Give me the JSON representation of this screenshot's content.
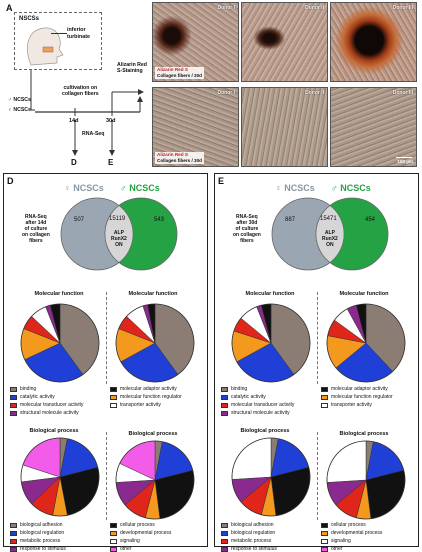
{
  "panels": {
    "A": "A",
    "B": "B",
    "C": "C",
    "D": "D",
    "E": "E"
  },
  "panel_a": {
    "nscs_box": "NSCSs",
    "inferior_turbinate": "inferior\nturbinate",
    "male_nscs": "NCSCs",
    "female_nscs": "NCSCs",
    "cultivation": "cultivation on\ncollagen fibers",
    "day14": "14d",
    "day30": "30d",
    "rnaseq": "RNA-Seq",
    "alizarin": "Alizarin Red\nS-Staining",
    "arrow_d": "D",
    "arrow_e": "E"
  },
  "panel_b": {
    "donors": [
      "Donor I",
      "Donor II",
      "Donor III"
    ],
    "cap_red": "Alizarin Red S",
    "cap_black": "Collagen fibers / 30d"
  },
  "panel_c": {
    "donors": [
      "Donor I",
      "Donor II",
      "Donor III"
    ],
    "cap_red": "Alizarin Red S",
    "cap_black": "Collagen fibers / 30d",
    "scale": "100 µm"
  },
  "panel_d": {
    "female": "NCSCs",
    "male": "NCSCs",
    "venn_left": "507",
    "venn_mid": "15119",
    "venn_right": "543",
    "venn_center_text": "ALP\nRunX2\nON",
    "side_text": "RNA-Seq\nafter 14d\nof culture\non collagen\nfibers",
    "mf_title_l": "Molecular function",
    "mf_title_r": "Molecular function",
    "bp_title_l": "Biological process",
    "bp_title_r": "Biological process"
  },
  "panel_e": {
    "female": "NCSCs",
    "male": "NCSCs",
    "venn_left": "887",
    "venn_mid": "15471",
    "venn_right": "454",
    "venn_center_text": "ALP\nRunX2\nON",
    "side_text": "RNA-Seq\nafter 30d\nof culture\non collagen\nfibers",
    "mf_title_l": "Molecular function",
    "mf_title_r": "Molecular function",
    "bp_title_l": "Biological process",
    "bp_title_r": "Biological process"
  },
  "legend_mf": [
    {
      "label": "binding",
      "color": "#8b7d74"
    },
    {
      "label": "molecular adaptor activity",
      "color": "#111111"
    },
    {
      "label": "catalytic activity",
      "color": "#1f3fd6"
    },
    {
      "label": "molecular function regulator",
      "color": "#f39a1e"
    },
    {
      "label": "molecular transducer activity",
      "color": "#e0261b"
    },
    {
      "label": "transporter activity",
      "color": "#ffffff"
    },
    {
      "label": "structural molecule activity",
      "color": "#8a2a8e"
    }
  ],
  "legend_bp": [
    {
      "label": "biological adhesion",
      "color": "#8b7d74"
    },
    {
      "label": "cellular process",
      "color": "#111111"
    },
    {
      "label": "biological regulation",
      "color": "#1f3fd6"
    },
    {
      "label": "developmental process",
      "color": "#f39a1e"
    },
    {
      "label": "metabolic process",
      "color": "#e0261b"
    },
    {
      "label": "signaling",
      "color": "#ffffff"
    },
    {
      "label": "response to stimulus",
      "color": "#8a2a8e"
    },
    {
      "label": "other",
      "color": "#f25ce8"
    }
  ],
  "colors": {
    "female_gray": "#9aa7b3",
    "male_green": "#25a244",
    "stain_red": "#b8261b"
  },
  "chart_data": [
    {
      "type": "pie",
      "panel": "D",
      "group": "Molecular function",
      "sex": "female",
      "labels": [
        "binding",
        "catalytic activity",
        "molecular function regulator",
        "molecular transducer activity",
        "transporter activity",
        "structural molecule activity",
        "molecular adaptor activity"
      ],
      "values": [
        40,
        28,
        13,
        6,
        7,
        2,
        4
      ]
    },
    {
      "type": "pie",
      "panel": "D",
      "group": "Molecular function",
      "sex": "male",
      "labels": [
        "binding",
        "catalytic activity",
        "molecular function regulator",
        "molecular transducer activity",
        "transporter activity",
        "structural molecule activity",
        "molecular adaptor activity"
      ],
      "values": [
        40,
        27,
        14,
        6,
        8,
        2,
        3
      ]
    },
    {
      "type": "pie",
      "panel": "D",
      "group": "Biological process",
      "sex": "female",
      "labels": [
        "biological adhesion",
        "biological regulation",
        "cellular process",
        "developmental process",
        "metabolic process",
        "response to stimulus",
        "signaling",
        "other"
      ],
      "values": [
        3,
        18,
        26,
        6,
        10,
        10,
        7,
        20
      ]
    },
    {
      "type": "pie",
      "panel": "D",
      "group": "Biological process",
      "sex": "male",
      "labels": [
        "biological adhesion",
        "biological regulation",
        "cellular process",
        "developmental process",
        "metabolic process",
        "response to stimulus",
        "signaling",
        "other"
      ],
      "values": [
        3,
        18,
        27,
        6,
        10,
        10,
        8,
        18
      ]
    },
    {
      "type": "pie",
      "panel": "E",
      "group": "Molecular function",
      "sex": "female",
      "labels": [
        "binding",
        "catalytic activity",
        "molecular function regulator",
        "molecular transducer activity",
        "transporter activity",
        "structural molecule activity",
        "molecular adaptor activity"
      ],
      "values": [
        40,
        27,
        13,
        6,
        8,
        2,
        4
      ]
    },
    {
      "type": "pie",
      "panel": "E",
      "group": "Molecular function",
      "sex": "male",
      "labels": [
        "binding",
        "catalytic activity",
        "molecular function regulator",
        "molecular transducer activity",
        "transporter activity",
        "structural molecule activity",
        "molecular adaptor activity"
      ],
      "values": [
        38,
        26,
        14,
        7,
        7,
        4,
        4
      ]
    },
    {
      "type": "pie",
      "panel": "E",
      "group": "Biological process",
      "sex": "female",
      "labels": [
        "biological adhesion",
        "biological regulation",
        "cellular process",
        "developmental process",
        "metabolic process",
        "response to stimulus",
        "signaling",
        "other"
      ],
      "values": [
        3,
        18,
        27,
        6,
        10,
        10,
        26,
        0
      ]
    },
    {
      "type": "pie",
      "panel": "E",
      "group": "Biological process",
      "sex": "male",
      "labels": [
        "biological adhesion",
        "biological regulation",
        "cellular process",
        "developmental process",
        "metabolic process",
        "response to stimulus",
        "signaling",
        "other"
      ],
      "values": [
        3,
        18,
        27,
        6,
        10,
        10,
        26,
        0
      ]
    }
  ]
}
